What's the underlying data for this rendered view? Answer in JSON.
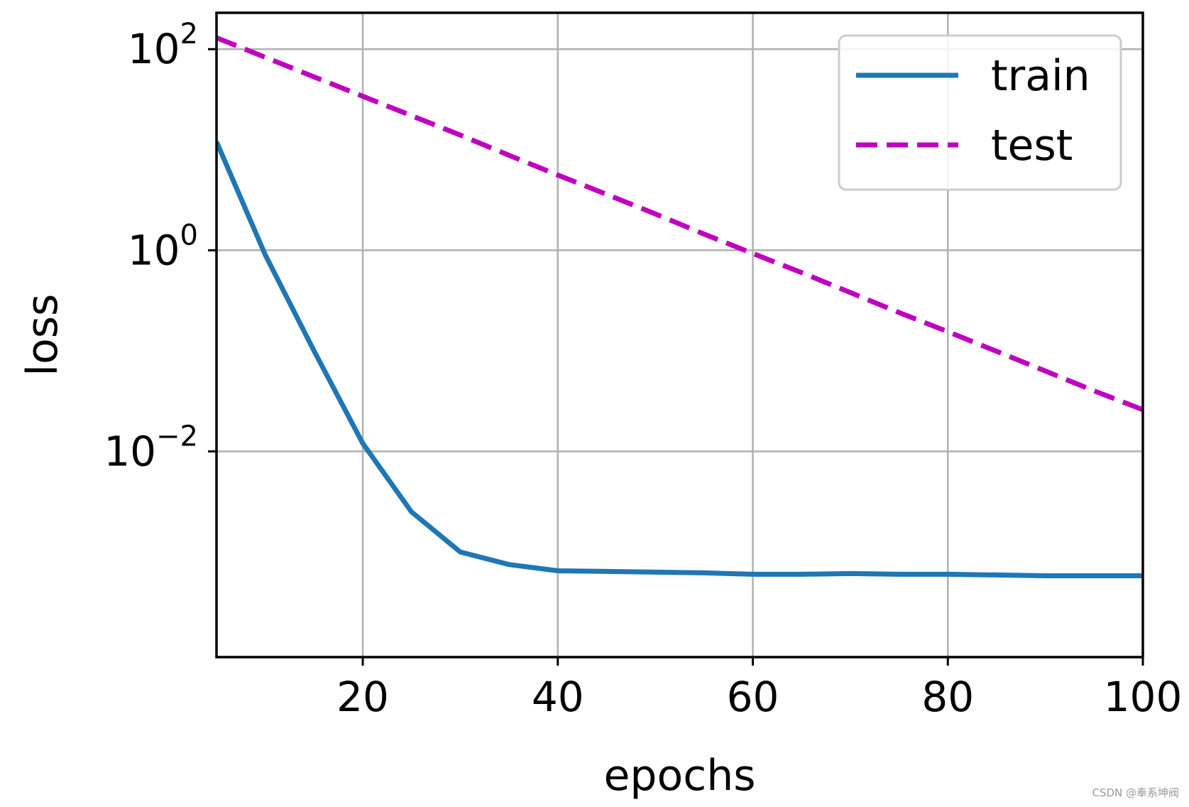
{
  "chart_data": {
    "type": "line",
    "xlabel": "epochs",
    "ylabel": "loss",
    "xlim": [
      5,
      100
    ],
    "ylim": [
      9e-05,
      230
    ],
    "yscale": "log",
    "grid": true,
    "legend_position": "top-right",
    "x_ticks": [
      {
        "value": 20,
        "label": "20"
      },
      {
        "value": 40,
        "label": "40"
      },
      {
        "value": 60,
        "label": "60"
      },
      {
        "value": 80,
        "label": "80"
      },
      {
        "value": 100,
        "label": "100"
      }
    ],
    "y_ticks": [
      {
        "value": 100,
        "base": "10",
        "exp": "2"
      },
      {
        "value": 1,
        "base": "10",
        "exp": "0"
      },
      {
        "value": 0.01,
        "base": "10",
        "exp": "−2"
      }
    ],
    "x": [
      5,
      10,
      15,
      20,
      25,
      30,
      35,
      40,
      45,
      50,
      55,
      60,
      65,
      70,
      75,
      80,
      85,
      90,
      95,
      100
    ],
    "series": [
      {
        "name": "train",
        "color": "#1f77b4",
        "style": "solid",
        "values": [
          12,
          0.9,
          0.1,
          0.012,
          0.0025,
          0.001,
          0.00075,
          0.00065,
          0.00064,
          0.00063,
          0.00062,
          0.0006,
          0.0006,
          0.00061,
          0.0006,
          0.0006,
          0.00059,
          0.00058,
          0.00058,
          0.00058
        ]
      },
      {
        "name": "test",
        "color": "#bf00bf",
        "style": "dashed",
        "values": [
          130,
          83,
          53,
          34,
          21.8,
          14,
          8.8,
          5.6,
          3.6,
          2.3,
          1.45,
          0.93,
          0.6,
          0.38,
          0.24,
          0.155,
          0.099,
          0.063,
          0.04,
          0.026
        ]
      }
    ]
  },
  "watermark": "CSDN @奉系坤阀"
}
